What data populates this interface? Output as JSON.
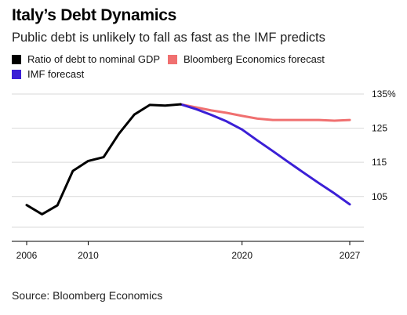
{
  "title": "Italy’s Debt Dynamics",
  "subtitle": "Public debt is unlikely to fall as fast as the IMF predicts",
  "source": "Source: Bloomberg Economics",
  "chart_data": {
    "type": "line",
    "xlim": [
      2006,
      2027
    ],
    "ylim": [
      95,
      137
    ],
    "grid": true,
    "legend_placement": "top-left",
    "y_ticks": [
      {
        "value": 135,
        "label": "135%"
      },
      {
        "value": 125,
        "label": "125"
      },
      {
        "value": 115,
        "label": "115"
      },
      {
        "value": 105,
        "label": "105"
      }
    ],
    "y_gridlines": [
      135,
      125,
      115,
      105,
      96
    ],
    "x_ticks": [
      {
        "value": 2006,
        "label": "2006"
      },
      {
        "value": 2010,
        "label": "2010"
      },
      {
        "value": 2020,
        "label": "2020"
      },
      {
        "value": 2027,
        "label": "2027"
      }
    ],
    "series": [
      {
        "name": "Ratio of debt to nominal GDP",
        "color": "#000000",
        "x": [
          2006,
          2007,
          2008,
          2009,
          2010,
          2011,
          2012,
          2013,
          2014,
          2015,
          2016
        ],
        "y": [
          102.5,
          99.8,
          102.4,
          112.5,
          115.4,
          116.5,
          123.4,
          129.0,
          131.8,
          131.6,
          132.0
        ]
      },
      {
        "name": "Bloomberg Economics forecast",
        "color": "#f07070",
        "x": [
          2016,
          2017,
          2018,
          2019,
          2020,
          2021,
          2022,
          2023,
          2024,
          2025,
          2026,
          2027
        ],
        "y": [
          132.0,
          131.1,
          130.2,
          129.5,
          128.6,
          127.8,
          127.4,
          127.4,
          127.4,
          127.4,
          127.2,
          127.4
        ]
      },
      {
        "name": "IMF forecast",
        "color": "#3b1fd6",
        "x": [
          2016,
          2017,
          2018,
          2019,
          2020,
          2021,
          2022,
          2023,
          2024,
          2025,
          2026,
          2027
        ],
        "y": [
          132.0,
          130.6,
          128.9,
          127.0,
          124.6,
          121.4,
          118.3,
          115.1,
          112.0,
          108.9,
          105.9,
          102.7
        ]
      }
    ]
  }
}
